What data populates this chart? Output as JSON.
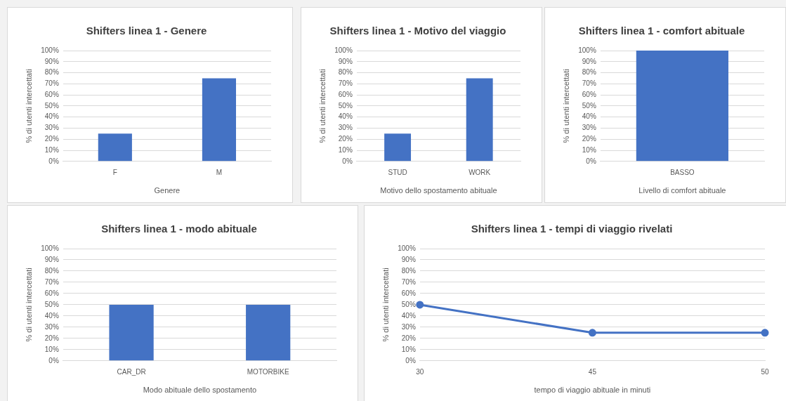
{
  "chart_data": [
    {
      "type": "bar",
      "title": "Shifters linea 1 - Genere",
      "xlabel": "Genere",
      "ylabel": "% di utenti intercettati",
      "categories": [
        "F",
        "M"
      ],
      "values": [
        25,
        75
      ],
      "color": "#4472c4",
      "ylim": [
        0,
        100
      ],
      "yticks": [
        {
          "value": 0,
          "label": "0%"
        },
        {
          "value": 10,
          "label": "10%"
        },
        {
          "value": 20,
          "label": "20%"
        },
        {
          "value": 30,
          "label": "30%"
        },
        {
          "value": 40,
          "label": "40%"
        },
        {
          "value": 50,
          "label": "50%"
        },
        {
          "value": 60,
          "label": "60%"
        },
        {
          "value": 70,
          "label": "70%"
        },
        {
          "value": 80,
          "label": "80%"
        },
        {
          "value": 90,
          "label": "90%"
        },
        {
          "value": 100,
          "label": "100%"
        }
      ],
      "grid": "y",
      "legend": false
    },
    {
      "type": "bar",
      "title": "Shifters linea 1 - Motivo del viaggio",
      "xlabel": "Motivo dello spostamento abituale",
      "ylabel": "% di utenti intercettati",
      "categories": [
        "STUD",
        "WORK"
      ],
      "values": [
        25,
        75
      ],
      "color": "#4472c4",
      "ylim": [
        0,
        100
      ],
      "yticks": [
        {
          "value": 0,
          "label": "0%"
        },
        {
          "value": 10,
          "label": "10%"
        },
        {
          "value": 20,
          "label": "20%"
        },
        {
          "value": 30,
          "label": "30%"
        },
        {
          "value": 40,
          "label": "40%"
        },
        {
          "value": 50,
          "label": "50%"
        },
        {
          "value": 60,
          "label": "60%"
        },
        {
          "value": 70,
          "label": "70%"
        },
        {
          "value": 80,
          "label": "80%"
        },
        {
          "value": 90,
          "label": "90%"
        },
        {
          "value": 100,
          "label": "100%"
        }
      ],
      "grid": "y",
      "legend": false
    },
    {
      "type": "bar",
      "title": "Shifters linea 1 - comfort abituale",
      "xlabel": "Livello di comfort abituale",
      "ylabel": "% di utenti intercettati",
      "categories": [
        "BASSO"
      ],
      "values": [
        100
      ],
      "color": "#4472c4",
      "ylim": [
        0,
        100
      ],
      "yticks": [
        {
          "value": 0,
          "label": "0%"
        },
        {
          "value": 10,
          "label": "10%"
        },
        {
          "value": 20,
          "label": "20%"
        },
        {
          "value": 30,
          "label": "30%"
        },
        {
          "value": 40,
          "label": "40%"
        },
        {
          "value": 50,
          "label": "50%"
        },
        {
          "value": 60,
          "label": "60%"
        },
        {
          "value": 70,
          "label": "70%"
        },
        {
          "value": 80,
          "label": "80%"
        },
        {
          "value": 90,
          "label": "90%"
        },
        {
          "value": 100,
          "label": "100%"
        }
      ],
      "grid": "y",
      "legend": false
    },
    {
      "type": "bar",
      "title": "Shifters linea 1 - modo abituale",
      "xlabel": "Modo abituale dello spostamento",
      "ylabel": "% di utenti intercettati",
      "categories": [
        "CAR_DR",
        "MOTORBIKE"
      ],
      "values": [
        50,
        50
      ],
      "color": "#4472c4",
      "ylim": [
        0,
        100
      ],
      "yticks": [
        {
          "value": 0,
          "label": "0%"
        },
        {
          "value": 10,
          "label": "10%"
        },
        {
          "value": 20,
          "label": "20%"
        },
        {
          "value": 30,
          "label": "30%"
        },
        {
          "value": 40,
          "label": "40%"
        },
        {
          "value": 50,
          "label": "50%"
        },
        {
          "value": 60,
          "label": "60%"
        },
        {
          "value": 70,
          "label": "70%"
        },
        {
          "value": 80,
          "label": "80%"
        },
        {
          "value": 90,
          "label": "90%"
        },
        {
          "value": 100,
          "label": "100%"
        }
      ],
      "grid": "y",
      "legend": false
    },
    {
      "type": "line",
      "title": "Shifters linea 1 - tempi di viaggio rivelati",
      "xlabel": "tempo di viaggio abituale in minuti",
      "ylabel": "% di utenti intercettati",
      "categories": [
        "30",
        "45",
        "50"
      ],
      "values": [
        50,
        25,
        25
      ],
      "color": "#4472c4",
      "ylim": [
        0,
        100
      ],
      "yticks": [
        {
          "value": 0,
          "label": "0%"
        },
        {
          "value": 10,
          "label": "10%"
        },
        {
          "value": 20,
          "label": "20%"
        },
        {
          "value": 30,
          "label": "30%"
        },
        {
          "value": 40,
          "label": "40%"
        },
        {
          "value": 50,
          "label": "50%"
        },
        {
          "value": 60,
          "label": "60%"
        },
        {
          "value": 70,
          "label": "70%"
        },
        {
          "value": 80,
          "label": "80%"
        },
        {
          "value": 90,
          "label": "90%"
        },
        {
          "value": 100,
          "label": "100%"
        }
      ],
      "grid": "y",
      "legend": false,
      "marker": "circle",
      "line_style": "solid"
    }
  ]
}
